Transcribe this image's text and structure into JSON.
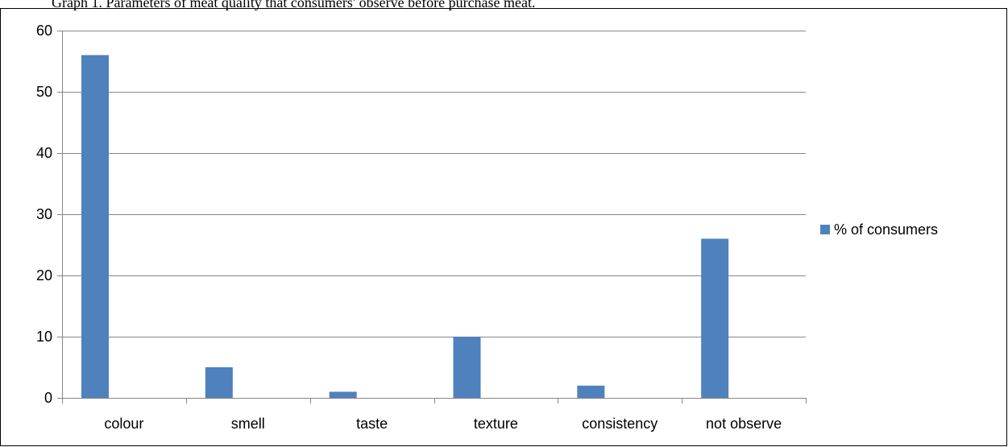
{
  "caption": "Graph 1. Parameters of meat quality that consumers' observe before purchase meat.",
  "chart_data": {
    "type": "bar",
    "categories": [
      "colour",
      "smell",
      "taste",
      "texture",
      "consistency",
      "not observe"
    ],
    "series": [
      {
        "name": "% of consumers",
        "values": [
          56,
          5,
          1,
          10,
          2,
          26
        ]
      }
    ],
    "ylim": [
      0,
      60
    ],
    "yticks": [
      0,
      10,
      20,
      30,
      40,
      50,
      60
    ],
    "grid": true,
    "legend": "right",
    "colors": {
      "bar": "#4f81bd",
      "grid": "#868686",
      "axis": "#868686"
    }
  }
}
